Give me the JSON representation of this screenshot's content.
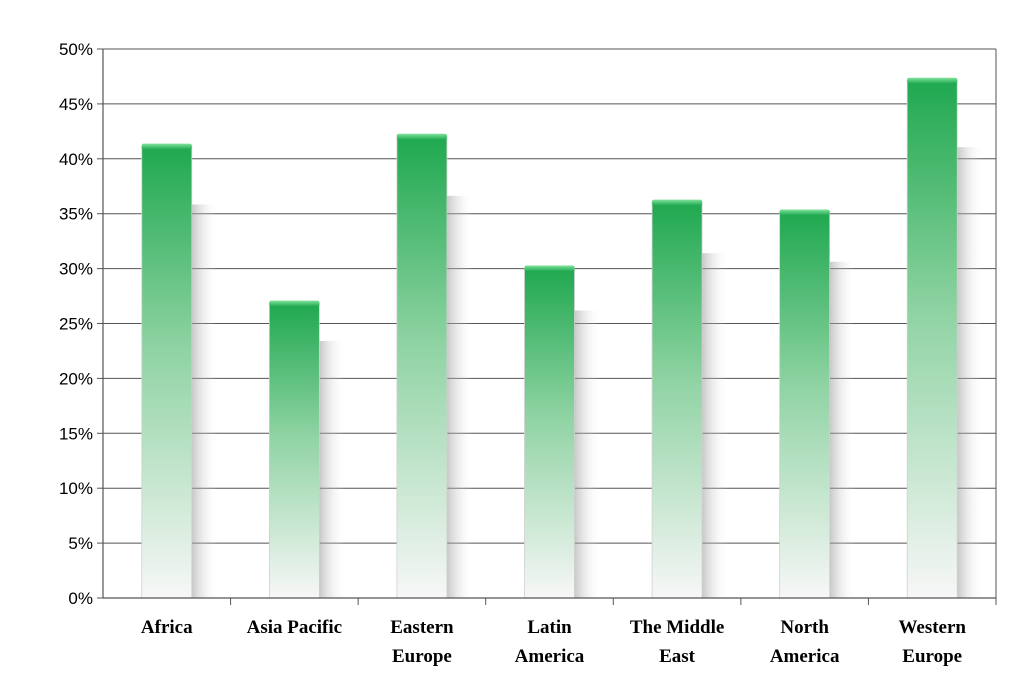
{
  "chart_data": {
    "type": "bar",
    "title": "",
    "xlabel": "",
    "ylabel": "",
    "categories": [
      [
        "Africa"
      ],
      [
        "Asia Pacific"
      ],
      [
        "Eastern",
        "Europe"
      ],
      [
        "Latin",
        "America"
      ],
      [
        "The Middle",
        "East"
      ],
      [
        "North",
        "America"
      ],
      [
        "Western",
        "Europe"
      ]
    ],
    "values": [
      41.2,
      26.9,
      42.1,
      30.1,
      36.1,
      35.2,
      47.2
    ],
    "ylim": [
      0,
      50
    ],
    "yticks": [
      "0%",
      "5%",
      "10%",
      "15%",
      "20%",
      "25%",
      "30%",
      "35%",
      "40%",
      "45%",
      "50%"
    ],
    "grid": true,
    "legend": "none",
    "colors": {
      "bar_top": "#1fa84f",
      "bar_bottom": "#f7f7f7",
      "grid": "#555555",
      "axis": "#555555"
    }
  }
}
